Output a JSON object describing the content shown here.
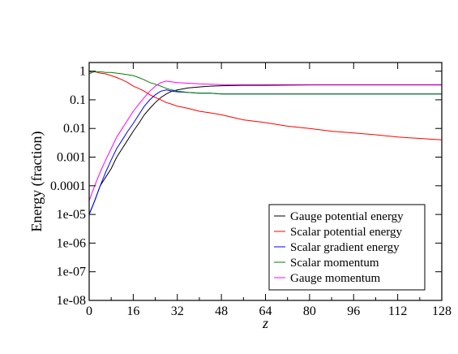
{
  "chart_data": {
    "type": "line",
    "title": "",
    "xlabel": "z",
    "ylabel": "Energy (fraction)",
    "xlim": [
      0,
      128
    ],
    "ylim": [
      1e-08,
      2
    ],
    "yscale": "log",
    "grid": false,
    "legend_position": "bottom-right",
    "x_ticks": [
      0,
      16,
      32,
      48,
      64,
      80,
      96,
      112,
      128
    ],
    "x_tick_labels": [
      "0",
      "16",
      "32",
      "48",
      "64",
      "80",
      "96",
      "112",
      "128"
    ],
    "y_ticks": [
      1e-08,
      1e-07,
      1e-06,
      1e-05,
      0.0001,
      0.001,
      0.01,
      0.1,
      1
    ],
    "y_tick_labels": [
      "1e-08",
      "1e-07",
      "1e-06",
      "1e-05",
      "0.0001",
      "0.001",
      "0.01",
      "0.1",
      "1"
    ],
    "series": [
      {
        "name": "Gauge potential energy",
        "color": "#000000",
        "x": [
          0,
          2,
          4,
          6,
          8,
          10,
          12,
          14,
          16,
          18,
          20,
          22,
          24,
          26,
          28,
          30,
          32,
          36,
          40,
          44,
          48,
          56,
          64,
          80,
          96,
          112,
          128
        ],
        "y": [
          1e-05,
          3e-05,
          0.0001,
          0.0002,
          0.0004,
          0.001,
          0.002,
          0.004,
          0.008,
          0.015,
          0.03,
          0.05,
          0.08,
          0.12,
          0.16,
          0.2,
          0.22,
          0.26,
          0.28,
          0.3,
          0.31,
          0.32,
          0.32,
          0.33,
          0.33,
          0.33,
          0.33
        ]
      },
      {
        "name": "Scalar potential energy",
        "color": "#ff0000",
        "x": [
          0,
          1,
          2,
          3,
          4,
          6,
          8,
          10,
          12,
          14,
          16,
          18,
          20,
          22,
          24,
          26,
          28,
          30,
          32,
          36,
          40,
          44,
          48,
          56,
          64,
          72,
          80,
          88,
          96,
          104,
          112,
          120,
          128
        ],
        "y": [
          1,
          0.9,
          0.95,
          0.9,
          0.85,
          0.8,
          0.7,
          0.6,
          0.5,
          0.4,
          0.3,
          0.25,
          0.2,
          0.15,
          0.12,
          0.1,
          0.08,
          0.07,
          0.06,
          0.05,
          0.04,
          0.035,
          0.03,
          0.02,
          0.016,
          0.012,
          0.01,
          0.008,
          0.007,
          0.006,
          0.005,
          0.0045,
          0.004
        ]
      },
      {
        "name": "Scalar gradient energy",
        "color": "#0000ff",
        "x": [
          0,
          2,
          4,
          6,
          8,
          10,
          12,
          14,
          16,
          18,
          20,
          22,
          24,
          26,
          28,
          30,
          32,
          36,
          40,
          44,
          48,
          56,
          64,
          80,
          96,
          112,
          128
        ],
        "y": [
          1e-05,
          3e-05,
          0.0001,
          0.0003,
          0.0008,
          0.002,
          0.004,
          0.008,
          0.015,
          0.03,
          0.06,
          0.1,
          0.15,
          0.2,
          0.22,
          0.2,
          0.19,
          0.18,
          0.17,
          0.17,
          0.16,
          0.16,
          0.16,
          0.16,
          0.16,
          0.16,
          0.16
        ]
      },
      {
        "name": "Scalar momentum",
        "color": "#008000",
        "x": [
          0,
          1,
          2,
          4,
          6,
          8,
          10,
          12,
          14,
          16,
          18,
          20,
          22,
          24,
          26,
          28,
          30,
          32,
          36,
          40,
          44,
          48,
          56,
          64,
          80,
          96,
          112,
          128
        ],
        "y": [
          0.8,
          0.9,
          0.95,
          0.95,
          0.9,
          0.9,
          0.85,
          0.8,
          0.75,
          0.7,
          0.6,
          0.5,
          0.4,
          0.35,
          0.3,
          0.25,
          0.22,
          0.2,
          0.18,
          0.17,
          0.17,
          0.16,
          0.16,
          0.16,
          0.16,
          0.16,
          0.16,
          0.16
        ]
      },
      {
        "name": "Gauge momentum",
        "color": "#ff00ff",
        "x": [
          0,
          2,
          4,
          6,
          8,
          10,
          12,
          14,
          16,
          18,
          20,
          22,
          24,
          26,
          28,
          30,
          32,
          36,
          40,
          44,
          48,
          56,
          64,
          80,
          96,
          112,
          128
        ],
        "y": [
          3e-05,
          0.0001,
          0.0003,
          0.0008,
          0.002,
          0.005,
          0.01,
          0.02,
          0.04,
          0.07,
          0.12,
          0.2,
          0.3,
          0.4,
          0.45,
          0.42,
          0.4,
          0.38,
          0.36,
          0.35,
          0.34,
          0.34,
          0.34,
          0.34,
          0.34,
          0.34,
          0.34
        ]
      }
    ]
  }
}
